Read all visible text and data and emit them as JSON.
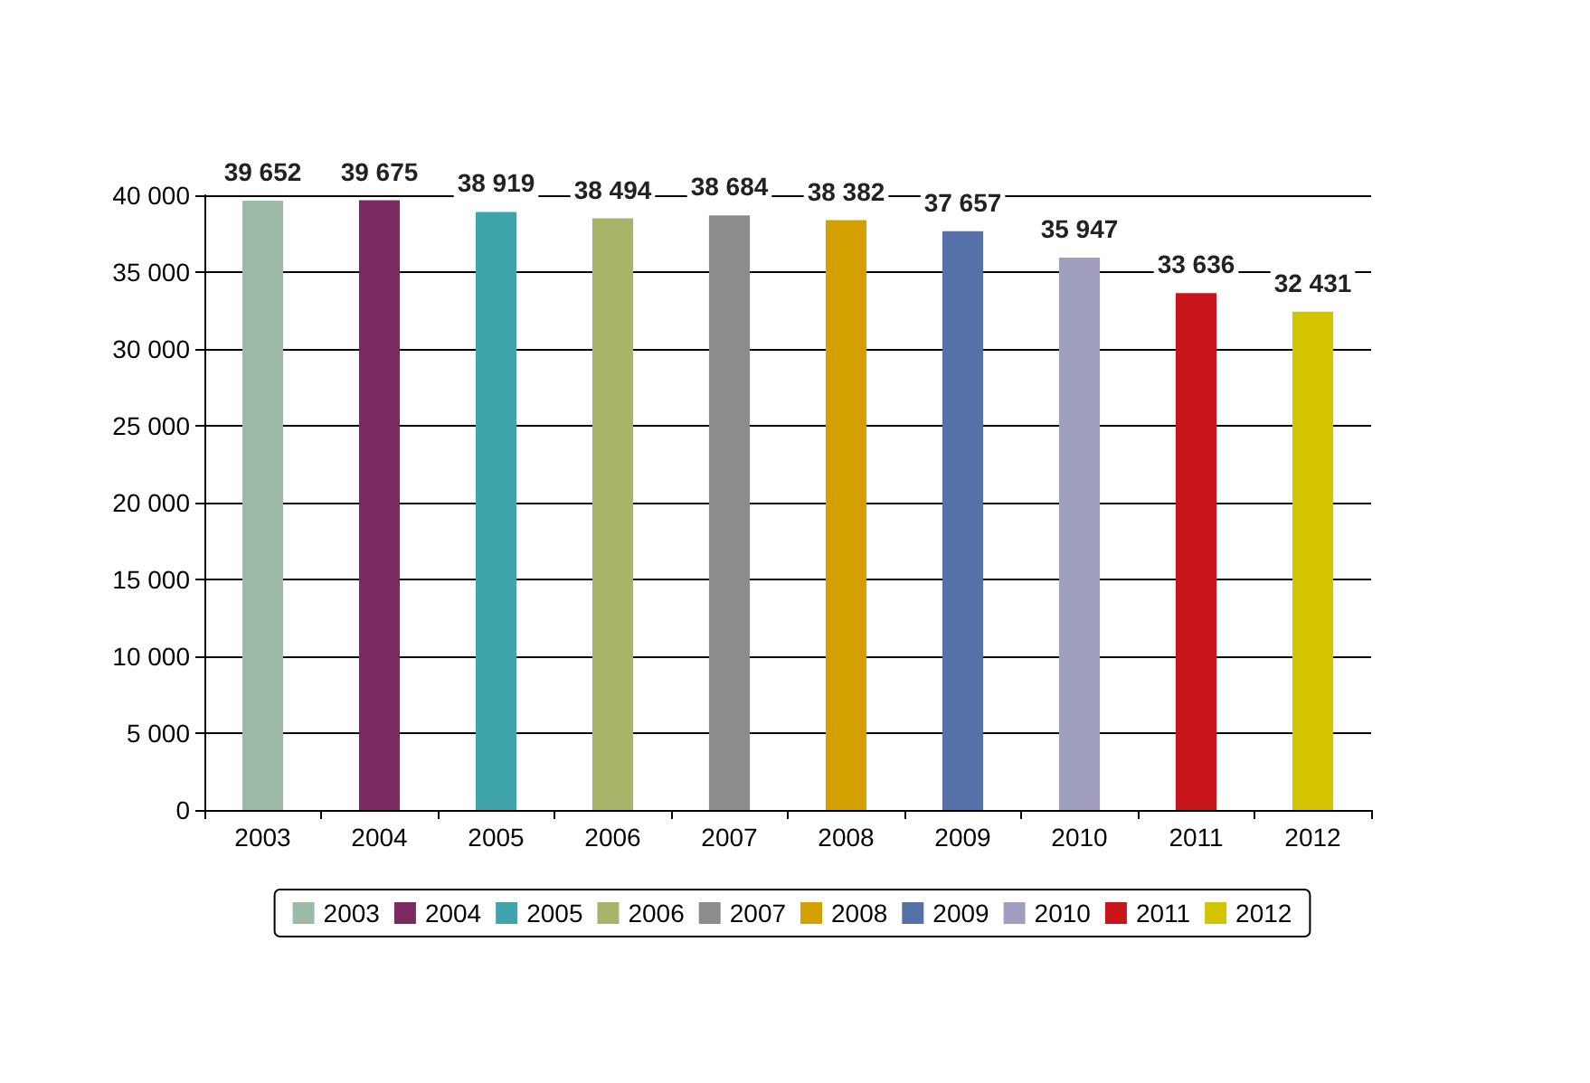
{
  "chart_data": {
    "type": "bar",
    "categories": [
      "2003",
      "2004",
      "2005",
      "2006",
      "2007",
      "2008",
      "2009",
      "2010",
      "2011",
      "2012"
    ],
    "series": [
      {
        "name": "2003",
        "color": "#9dbaa8",
        "values": [
          39652,
          null,
          null,
          null,
          null,
          null,
          null,
          null,
          null,
          null
        ],
        "value_labels": [
          "39 652",
          null,
          null,
          null,
          null,
          null,
          null,
          null,
          null,
          null
        ]
      },
      {
        "name": "2004",
        "color": "#7a2a5e",
        "values": [
          null,
          39675,
          null,
          null,
          null,
          null,
          null,
          null,
          null,
          null
        ],
        "value_labels": [
          null,
          "39 675",
          null,
          null,
          null,
          null,
          null,
          null,
          null,
          null
        ]
      },
      {
        "name": "2005",
        "color": "#3fa4ab",
        "values": [
          null,
          null,
          38919,
          null,
          null,
          null,
          null,
          null,
          null,
          null
        ],
        "value_labels": [
          null,
          null,
          "38 919",
          null,
          null,
          null,
          null,
          null,
          null,
          null
        ]
      },
      {
        "name": "2006",
        "color": "#a8b46a",
        "values": [
          null,
          null,
          null,
          38494,
          null,
          null,
          null,
          null,
          null,
          null
        ],
        "value_labels": [
          null,
          null,
          null,
          "38 494",
          null,
          null,
          null,
          null,
          null,
          null
        ]
      },
      {
        "name": "2007",
        "color": "#8c8c8c",
        "values": [
          null,
          null,
          null,
          null,
          38684,
          null,
          null,
          null,
          null,
          null
        ],
        "value_labels": [
          null,
          null,
          null,
          null,
          "38 684",
          null,
          null,
          null,
          null,
          null
        ]
      },
      {
        "name": "2008",
        "color": "#d3a000",
        "values": [
          null,
          null,
          null,
          null,
          null,
          38382,
          null,
          null,
          null,
          null
        ],
        "value_labels": [
          null,
          null,
          null,
          null,
          null,
          "38 382",
          null,
          null,
          null,
          null
        ]
      },
      {
        "name": "2009",
        "color": "#5670a8",
        "values": [
          null,
          null,
          null,
          null,
          null,
          null,
          37657,
          null,
          null,
          null
        ],
        "value_labels": [
          null,
          null,
          null,
          null,
          null,
          null,
          "37 657",
          null,
          null,
          null
        ]
      },
      {
        "name": "2010",
        "color": "#a19fc0",
        "values": [
          null,
          null,
          null,
          null,
          null,
          null,
          null,
          35947,
          null,
          null
        ],
        "value_labels": [
          null,
          null,
          null,
          null,
          null,
          null,
          null,
          "35 947",
          null,
          null
        ]
      },
      {
        "name": "2011",
        "color": "#c8151c",
        "values": [
          null,
          null,
          null,
          null,
          null,
          null,
          null,
          null,
          33636,
          null
        ],
        "value_labels": [
          null,
          null,
          null,
          null,
          null,
          null,
          null,
          null,
          "33 636",
          null
        ]
      },
      {
        "name": "2012",
        "color": "#d4c400",
        "values": [
          null,
          null,
          null,
          null,
          null,
          null,
          null,
          null,
          null,
          32431
        ],
        "value_labels": [
          null,
          null,
          null,
          null,
          null,
          null,
          null,
          null,
          null,
          "32 431"
        ]
      }
    ],
    "ylim": [
      0,
      40000
    ],
    "yticks": [
      {
        "value": 0,
        "label": "0"
      },
      {
        "value": 5000,
        "label": "5 000"
      },
      {
        "value": 10000,
        "label": "10 000"
      },
      {
        "value": 15000,
        "label": "15 000"
      },
      {
        "value": 20000,
        "label": "20 000"
      },
      {
        "value": 25000,
        "label": "25 000"
      },
      {
        "value": 30000,
        "label": "30 000"
      },
      {
        "value": 35000,
        "label": "35 000"
      },
      {
        "value": 40000,
        "label": "40 000"
      }
    ],
    "grid": "y",
    "legend": "bottom"
  }
}
